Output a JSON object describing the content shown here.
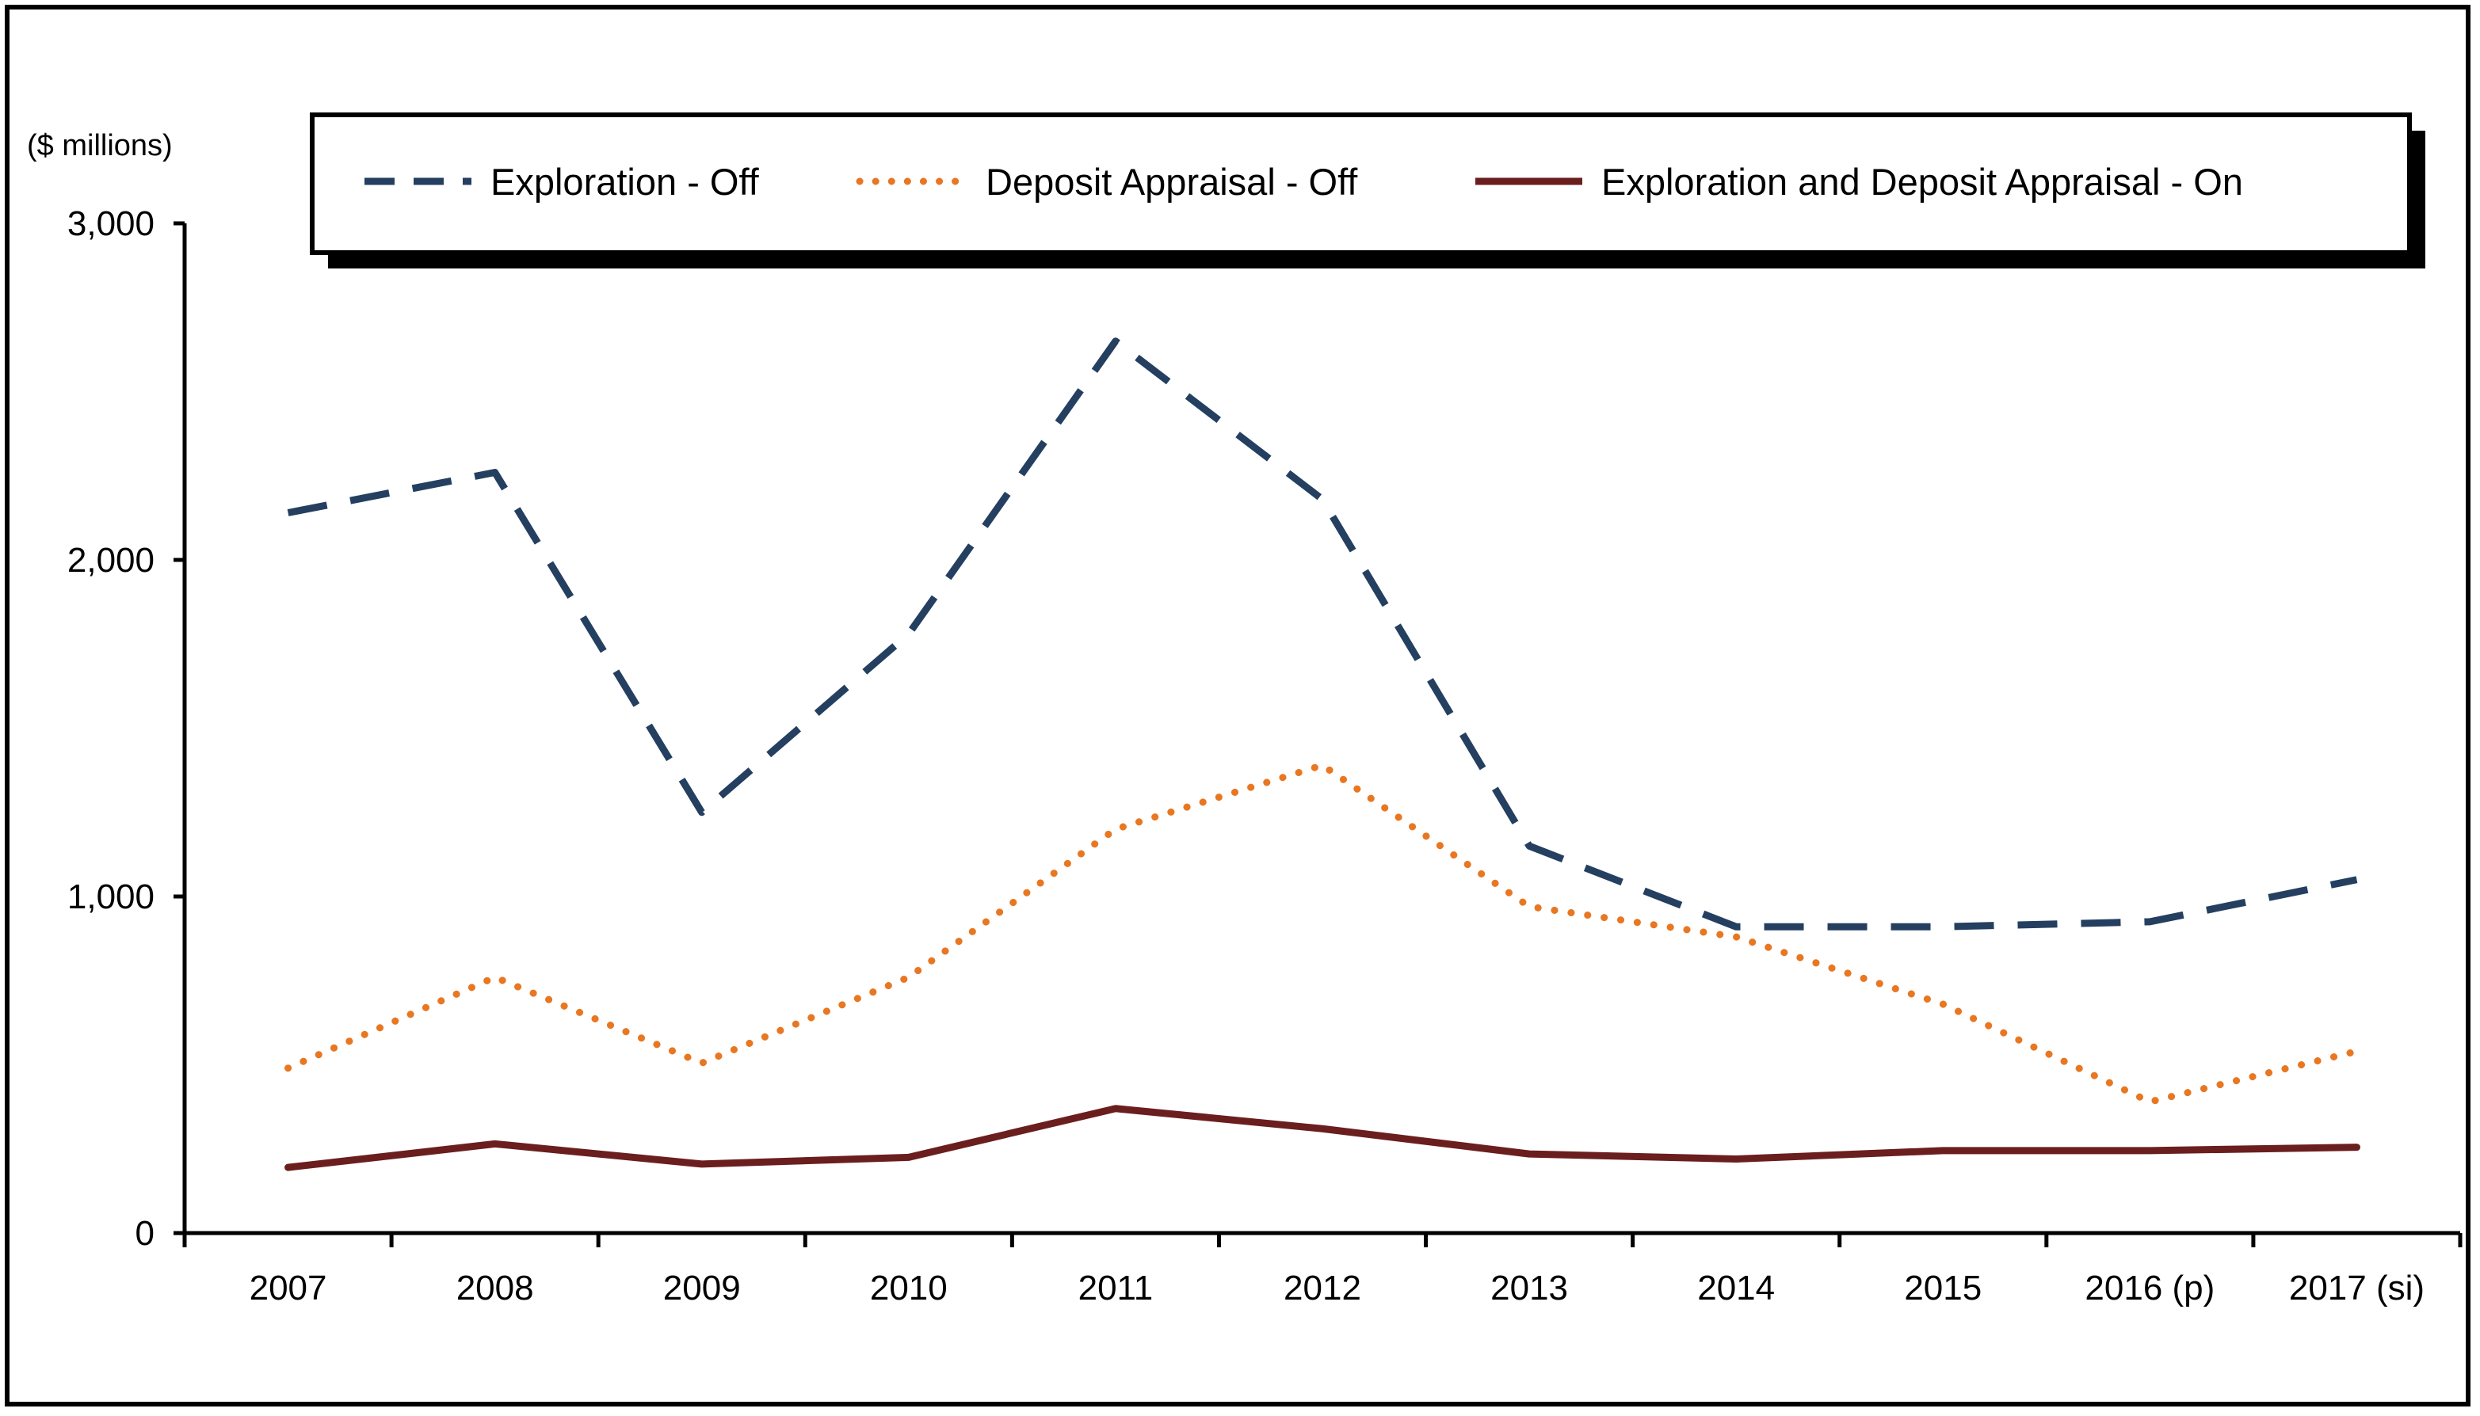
{
  "chart_data": {
    "type": "line",
    "title": "",
    "unit_label": "($ millions)",
    "xlabel": "",
    "ylabel": "",
    "categories": [
      "2007",
      "2008",
      "2009",
      "2010",
      "2011",
      "2012",
      "2013",
      "2014",
      "2015",
      "2016 (p)",
      "2017 (si)"
    ],
    "ylim": [
      0,
      3000
    ],
    "yticks": [
      0,
      1000,
      2000,
      3000
    ],
    "ytick_labels": [
      "0",
      "1,000",
      "2,000",
      "3,000"
    ],
    "grid": false,
    "legend_position": "top",
    "series": [
      {
        "name": "Exploration - Off",
        "color": "#243F60",
        "style": "dashed",
        "values": [
          2140,
          2260,
          1250,
          1780,
          2650,
          2180,
          1150,
          910,
          910,
          925,
          1050
        ]
      },
      {
        "name": "Deposit Appraisal - Off",
        "color": "#E87722",
        "style": "dotted",
        "values": [
          490,
          760,
          505,
          760,
          1200,
          1390,
          970,
          880,
          680,
          390,
          540
        ]
      },
      {
        "name": "Exploration and Deposit Appraisal - On",
        "color": "#6B1E1E",
        "style": "solid",
        "values": [
          195,
          265,
          205,
          225,
          370,
          310,
          235,
          220,
          245,
          245,
          255
        ]
      }
    ]
  }
}
